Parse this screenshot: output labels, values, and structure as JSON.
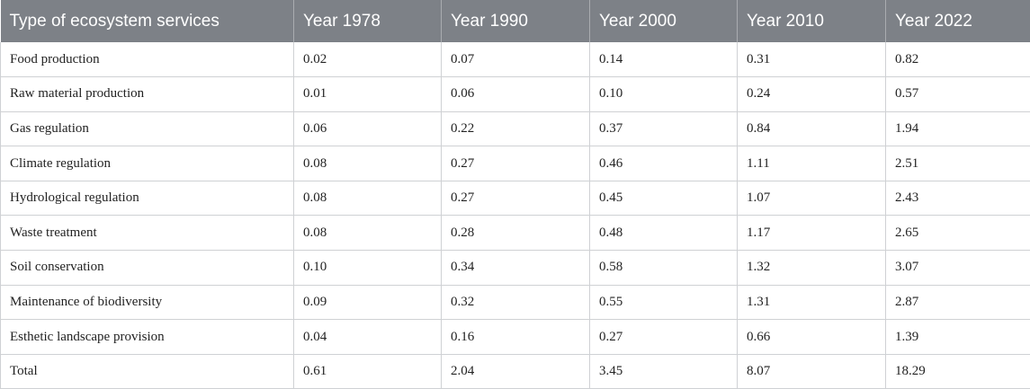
{
  "table": {
    "headers": [
      "Type of ecosystem services",
      "Year 1978",
      "Year 1990",
      "Year 2000",
      "Year 2010",
      "Year 2022"
    ],
    "rows": [
      [
        "Food production",
        "0.02",
        "0.07",
        "0.14",
        "0.31",
        "0.82"
      ],
      [
        "Raw material production",
        "0.01",
        "0.06",
        "0.10",
        "0.24",
        "0.57"
      ],
      [
        "Gas regulation",
        "0.06",
        "0.22",
        "0.37",
        "0.84",
        "1.94"
      ],
      [
        "Climate regulation",
        "0.08",
        "0.27",
        "0.46",
        "1.11",
        "2.51"
      ],
      [
        "Hydrological regulation",
        "0.08",
        "0.27",
        "0.45",
        "1.07",
        "2.43"
      ],
      [
        "Waste treatment",
        "0.08",
        "0.28",
        "0.48",
        "1.17",
        "2.65"
      ],
      [
        "Soil conservation",
        "0.10",
        "0.34",
        "0.58",
        "1.32",
        "3.07"
      ],
      [
        "Maintenance of biodiversity",
        "0.09",
        "0.32",
        "0.55",
        "1.31",
        "2.87"
      ],
      [
        "Esthetic landscape provision",
        "0.04",
        "0.16",
        "0.27",
        "0.66",
        "1.39"
      ],
      [
        "Total",
        "0.61",
        "2.04",
        "3.45",
        "8.07",
        "18.29"
      ]
    ]
  },
  "colors": {
    "header_background": "#7d8187",
    "header_text": "#ffffff",
    "grid_line": "#cfd1d4"
  }
}
